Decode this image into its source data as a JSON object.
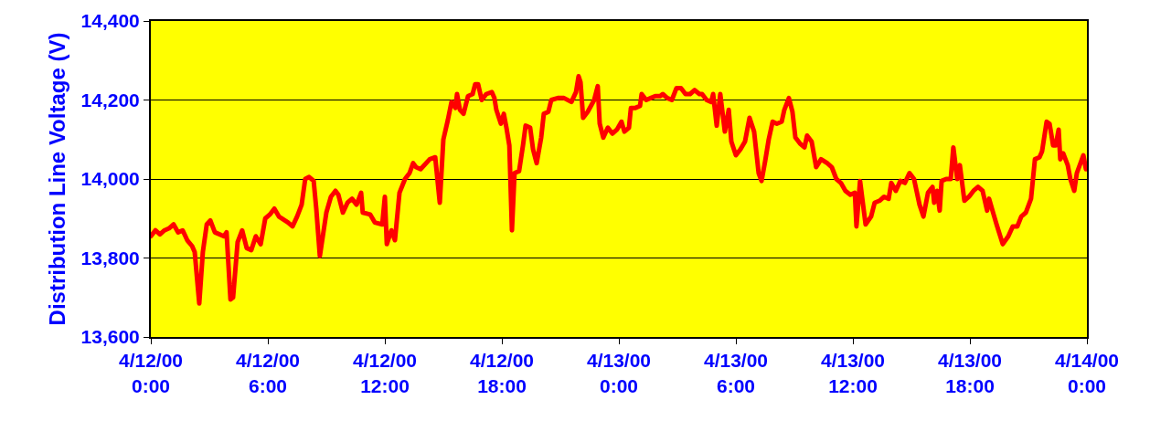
{
  "chart_data": {
    "type": "line",
    "ylabel": "Distribution Line Voltage (V)",
    "xlim": [
      "2000-04-12T00:00",
      "2000-04-14T00:00"
    ],
    "xticks": [
      {
        "value": "2000-04-12T00:00",
        "label": "4/12/00\n0:00"
      },
      {
        "value": "2000-04-12T06:00",
        "label": "4/12/00\n6:00"
      },
      {
        "value": "2000-04-12T12:00",
        "label": "4/12/00\n12:00"
      },
      {
        "value": "2000-04-12T18:00",
        "label": "4/12/00\n18:00"
      },
      {
        "value": "2000-04-13T00:00",
        "label": "4/13/00\n0:00"
      },
      {
        "value": "2000-04-13T06:00",
        "label": "4/13/00\n6:00"
      },
      {
        "value": "2000-04-13T12:00",
        "label": "4/13/00\n12:00"
      },
      {
        "value": "2000-04-13T18:00",
        "label": "4/13/00\n18:00"
      },
      {
        "value": "2000-04-14T00:00",
        "label": "4/14/00\n0:00"
      }
    ],
    "ylim": [
      13600,
      14400
    ],
    "yticks": [
      {
        "value": 13600,
        "label": "13,600"
      },
      {
        "value": 13800,
        "label": "13,800"
      },
      {
        "value": 14000,
        "label": "14,000"
      },
      {
        "value": 14200,
        "label": "14,200"
      },
      {
        "value": 14400,
        "label": "14,400"
      }
    ],
    "grid": "y",
    "legend": false,
    "marker": "none",
    "line_style": "solid",
    "x": [
      "2000-04-12T00:00",
      "2000-04-12T00:14",
      "2000-04-12T00:28",
      "2000-04-12T00:42",
      "2000-04-12T00:56",
      "2000-04-12T01:10",
      "2000-04-12T01:24",
      "2000-04-12T01:38",
      "2000-04-12T01:52",
      "2000-04-12T02:07",
      "2000-04-12T02:15",
      "2000-04-12T02:29",
      "2000-04-12T02:40",
      "2000-04-12T02:52",
      "2000-04-12T03:03",
      "2000-04-12T03:17",
      "2000-04-12T03:45",
      "2000-04-12T03:53",
      "2000-04-12T04:05",
      "2000-04-12T04:13",
      "2000-04-12T04:27",
      "2000-04-12T04:41",
      "2000-04-12T04:55",
      "2000-04-12T05:09",
      "2000-04-12T05:23",
      "2000-04-12T05:38",
      "2000-04-12T05:52",
      "2000-04-12T06:06",
      "2000-04-12T06:20",
      "2000-04-12T06:34",
      "2000-04-12T07:02",
      "2000-04-12T07:16",
      "2000-04-12T07:30",
      "2000-04-12T07:44",
      "2000-04-12T07:55",
      "2000-04-12T08:07",
      "2000-04-12T08:21",
      "2000-04-12T08:29",
      "2000-04-12T08:40",
      "2000-04-12T09:00",
      "2000-04-12T09:14",
      "2000-04-12T09:28",
      "2000-04-12T09:37",
      "2000-04-12T09:51",
      "2000-04-12T10:05",
      "2000-04-12T10:19",
      "2000-04-12T10:33",
      "2000-04-12T10:47",
      "2000-04-12T10:52",
      "2000-04-12T11:15",
      "2000-04-12T11:29",
      "2000-04-12T11:52",
      "2000-04-12T12:00",
      "2000-04-12T12:06",
      "2000-04-12T12:20",
      "2000-04-12T12:31",
      "2000-04-12T12:45",
      "2000-04-12T13:02",
      "2000-04-12T13:16",
      "2000-04-12T13:27",
      "2000-04-12T13:36",
      "2000-04-12T13:50",
      "2000-04-12T14:18",
      "2000-04-12T14:35",
      "2000-04-12T14:49",
      "2000-04-12T15:00",
      "2000-04-12T15:14",
      "2000-04-12T15:25",
      "2000-04-12T15:37",
      "2000-04-12T15:42",
      "2000-04-12T15:51",
      "2000-04-12T16:02",
      "2000-04-12T16:16",
      "2000-04-12T16:30",
      "2000-04-12T16:38",
      "2000-04-12T16:47",
      "2000-04-12T16:58",
      "2000-04-12T17:12",
      "2000-04-12T17:29",
      "2000-04-12T17:37",
      "2000-04-12T17:43",
      "2000-04-12T17:57",
      "2000-04-12T18:06",
      "2000-04-12T18:14",
      "2000-04-12T18:23",
      "2000-04-12T18:31",
      "2000-04-12T18:39",
      "2000-04-12T18:53",
      "2000-04-12T19:05",
      "2000-04-12T19:13",
      "2000-04-12T19:27",
      "2000-04-12T19:36",
      "2000-04-12T19:47",
      "2000-04-12T20:01",
      "2000-04-12T20:09",
      "2000-04-12T20:23",
      "2000-04-12T20:32",
      "2000-04-12T20:52",
      "2000-04-12T21:11",
      "2000-04-12T21:34",
      "2000-04-12T21:48",
      "2000-04-12T21:56",
      "2000-04-12T22:02",
      "2000-04-12T22:10",
      "2000-04-12T22:24",
      "2000-04-12T22:44",
      "2000-04-12T22:55",
      "2000-04-12T23:01",
      "2000-04-12T23:12",
      "2000-04-12T23:26",
      "2000-04-12T23:40",
      "2000-04-12T23:54",
      "2000-04-13T00:08",
      "2000-04-13T00:17",
      "2000-04-13T00:31",
      "2000-04-13T00:37",
      "2000-04-13T00:51",
      "2000-04-13T01:05",
      "2000-04-13T01:10",
      "2000-04-13T01:24",
      "2000-04-13T01:38",
      "2000-04-13T01:52",
      "2000-04-13T02:07",
      "2000-04-13T02:15",
      "2000-04-13T02:29",
      "2000-04-13T02:43",
      "2000-04-13T02:57",
      "2000-04-13T03:11",
      "2000-04-13T03:25",
      "2000-04-13T03:39",
      "2000-04-13T03:53",
      "2000-04-13T04:08",
      "2000-04-13T04:16",
      "2000-04-13T04:30",
      "2000-04-13T04:44",
      "2000-04-13T04:50",
      "2000-04-13T05:01",
      "2000-04-13T05:12",
      "2000-04-13T05:26",
      "2000-04-13T05:38",
      "2000-04-13T05:46",
      "2000-04-13T06:00",
      "2000-04-13T06:14",
      "2000-04-13T06:28",
      "2000-04-13T06:42",
      "2000-04-13T06:56",
      "2000-04-13T07:10",
      "2000-04-13T07:19",
      "2000-04-13T07:30",
      "2000-04-13T07:41",
      "2000-04-13T07:53",
      "2000-04-13T08:06",
      "2000-04-13T08:21",
      "2000-04-13T08:29",
      "2000-04-13T08:43",
      "2000-04-13T08:54",
      "2000-04-13T09:03",
      "2000-04-13T09:17",
      "2000-04-13T09:31",
      "2000-04-13T09:39",
      "2000-04-13T09:53",
      "2000-04-13T10:07",
      "2000-04-13T10:22",
      "2000-04-13T10:41",
      "2000-04-13T10:55",
      "2000-04-13T11:09",
      "2000-04-13T11:23",
      "2000-04-13T11:37",
      "2000-04-13T11:52",
      "2000-04-13T12:06",
      "2000-04-13T12:11",
      "2000-04-13T12:22",
      "2000-04-13T12:39",
      "2000-04-13T12:56",
      "2000-04-13T13:07",
      "2000-04-13T13:22",
      "2000-04-13T13:36",
      "2000-04-13T13:50",
      "2000-04-13T13:58",
      "2000-04-13T14:12",
      "2000-04-13T14:26",
      "2000-04-13T14:40",
      "2000-04-13T14:54",
      "2000-04-13T15:08",
      "2000-04-13T15:25",
      "2000-04-13T15:37",
      "2000-04-13T15:51",
      "2000-04-13T16:05",
      "2000-04-13T16:10",
      "2000-04-13T16:19",
      "2000-04-13T16:27",
      "2000-04-13T16:33",
      "2000-04-13T16:47",
      "2000-04-13T17:01",
      "2000-04-13T17:09",
      "2000-04-13T17:21",
      "2000-04-13T17:29",
      "2000-04-13T17:43",
      "2000-04-13T17:57",
      "2000-04-13T18:11",
      "2000-04-13T18:25",
      "2000-04-13T18:39",
      "2000-04-13T18:53",
      "2000-04-13T18:59",
      "2000-04-13T19:13",
      "2000-04-13T19:22",
      "2000-04-13T19:41",
      "2000-04-13T19:58",
      "2000-04-13T20:12",
      "2000-04-13T20:26",
      "2000-04-13T20:38",
      "2000-04-13T20:52",
      "2000-04-13T21:08",
      "2000-04-13T21:20",
      "2000-04-13T21:34",
      "2000-04-13T21:42",
      "2000-04-13T21:56",
      "2000-04-13T22:05",
      "2000-04-13T22:16",
      "2000-04-13T22:24",
      "2000-04-13T22:33",
      "2000-04-13T22:38",
      "2000-04-13T22:47",
      "2000-04-13T23:01",
      "2000-04-13T23:09",
      "2000-04-13T23:21",
      "2000-04-13T23:29",
      "2000-04-13T23:49",
      "2000-04-13T23:57"
    ],
    "series": [
      {
        "color": "#ff0000",
        "values": [
          13855,
          13870,
          13860,
          13870,
          13875,
          13885,
          13865,
          13870,
          13845,
          13830,
          13815,
          13685,
          13815,
          13885,
          13895,
          13865,
          13855,
          13865,
          13695,
          13700,
          13840,
          13870,
          13825,
          13820,
          13855,
          13835,
          13900,
          13910,
          13925,
          13905,
          13890,
          13880,
          13905,
          13935,
          14000,
          14005,
          13995,
          13925,
          13805,
          13915,
          13955,
          13970,
          13960,
          13915,
          13940,
          13950,
          13935,
          13965,
          13915,
          13910,
          13890,
          13885,
          13955,
          13835,
          13870,
          13845,
          13965,
          14000,
          14015,
          14040,
          14030,
          14025,
          14050,
          14055,
          13940,
          14100,
          14150,
          14195,
          14180,
          14215,
          14175,
          14165,
          14210,
          14215,
          14240,
          14240,
          14200,
          14215,
          14220,
          14205,
          14175,
          14140,
          14165,
          14130,
          14085,
          13870,
          14015,
          14020,
          14085,
          14135,
          14130,
          14075,
          14040,
          14105,
          14165,
          14170,
          14200,
          14205,
          14205,
          14195,
          14220,
          14260,
          14245,
          14155,
          14170,
          14200,
          14235,
          14140,
          14105,
          14130,
          14115,
          14125,
          14145,
          14120,
          14130,
          14180,
          14180,
          14185,
          14215,
          14200,
          14205,
          14210,
          14210,
          14215,
          14205,
          14200,
          14230,
          14230,
          14215,
          14215,
          14225,
          14215,
          14215,
          14200,
          14195,
          14215,
          14135,
          14215,
          14120,
          14175,
          14095,
          14060,
          14075,
          14095,
          14155,
          14120,
          14015,
          13995,
          14045,
          14100,
          14145,
          14140,
          14145,
          14175,
          14205,
          14170,
          14105,
          14090,
          14080,
          14110,
          14095,
          14030,
          14050,
          14040,
          14030,
          14000,
          13990,
          13970,
          13960,
          13965,
          13880,
          13995,
          13885,
          13905,
          13940,
          13945,
          13955,
          13950,
          13990,
          13970,
          13995,
          13990,
          14015,
          14000,
          13935,
          13905,
          13965,
          13980,
          13940,
          13970,
          13920,
          13995,
          14000,
          14000,
          14080,
          14000,
          14035,
          13945,
          13955,
          13970,
          13980,
          13970,
          13920,
          13950,
          13910,
          13885,
          13835,
          13855,
          13880,
          13880,
          13905,
          13915,
          13950,
          14050,
          14055,
          14070,
          14145,
          14140,
          14085,
          14085,
          14125,
          14050,
          14065,
          14035,
          14000,
          13970,
          14015,
          14060,
          14025
        ]
      }
    ]
  }
}
